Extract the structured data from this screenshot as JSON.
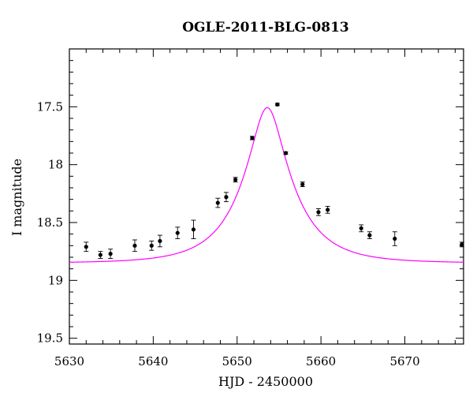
{
  "chart_data": {
    "type": "scatter",
    "title": "OGLE-2011-BLG-0813",
    "xlabel": "HJD - 2450000",
    "ylabel": "I magnitude",
    "xlim": [
      5630,
      5677
    ],
    "ylim": [
      19.55,
      17.0
    ],
    "y_inverted": true,
    "x_ticks": [
      5630,
      5640,
      5650,
      5660,
      5670
    ],
    "x_tick_labels": [
      "5630",
      "5640",
      "5650",
      "5660",
      "5670"
    ],
    "y_ticks": [
      17.5,
      18,
      18.5,
      19,
      19.5
    ],
    "y_tick_labels": [
      "17.5",
      "18",
      "18.5",
      "19",
      "19.5"
    ],
    "grid": false,
    "colors": {
      "points": "#000000",
      "model": "#ff00ff",
      "frame": "#000000"
    },
    "series": [
      {
        "type": "scatter",
        "points": [
          {
            "x": 5632.0,
            "y": 18.71,
            "err": 0.04
          },
          {
            "x": 5633.7,
            "y": 18.78,
            "err": 0.03
          },
          {
            "x": 5634.9,
            "y": 18.77,
            "err": 0.04
          },
          {
            "x": 5637.8,
            "y": 18.7,
            "err": 0.05
          },
          {
            "x": 5639.8,
            "y": 18.7,
            "err": 0.04
          },
          {
            "x": 5640.8,
            "y": 18.66,
            "err": 0.05
          },
          {
            "x": 5642.9,
            "y": 18.59,
            "err": 0.05
          },
          {
            "x": 5644.8,
            "y": 18.56,
            "err": 0.08
          },
          {
            "x": 5647.7,
            "y": 18.33,
            "err": 0.04
          },
          {
            "x": 5648.7,
            "y": 18.28,
            "err": 0.04
          },
          {
            "x": 5649.8,
            "y": 18.13,
            "err": 0.02
          },
          {
            "x": 5651.8,
            "y": 17.77,
            "err": 0.015
          },
          {
            "x": 5654.8,
            "y": 17.48,
            "err": 0.01
          },
          {
            "x": 5655.8,
            "y": 17.9,
            "err": 0.01
          },
          {
            "x": 5657.8,
            "y": 18.17,
            "err": 0.02
          },
          {
            "x": 5659.7,
            "y": 18.41,
            "err": 0.03
          },
          {
            "x": 5660.8,
            "y": 18.39,
            "err": 0.03
          },
          {
            "x": 5664.8,
            "y": 18.55,
            "err": 0.03
          },
          {
            "x": 5665.8,
            "y": 18.61,
            "err": 0.03
          },
          {
            "x": 5668.8,
            "y": 18.64,
            "err": 0.06
          },
          {
            "x": 5676.8,
            "y": 18.69,
            "err": 0.02
          }
        ]
      },
      {
        "type": "line",
        "model": "point-lens",
        "params": {
          "t0": 5653.6,
          "u0": 0.3,
          "tE": 6.0,
          "I_base": 18.85
        }
      }
    ]
  }
}
